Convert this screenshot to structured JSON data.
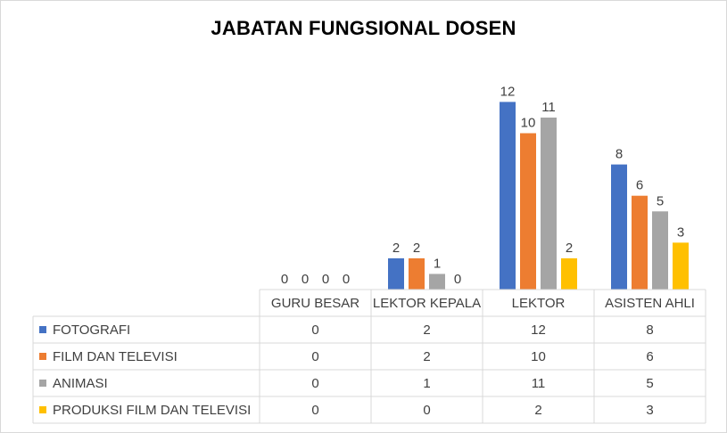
{
  "chart_data": {
    "type": "bar",
    "title": "JABATAN FUNGSIONAL DOSEN",
    "categories": [
      "GURU BESAR",
      "LEKTOR KEPALA",
      "LEKTOR",
      "ASISTEN AHLI"
    ],
    "series": [
      {
        "name": "FOTOGRAFI",
        "values": [
          0,
          2,
          12,
          8
        ],
        "color": "#4472c4"
      },
      {
        "name": "FILM DAN TELEVISI",
        "values": [
          0,
          2,
          10,
          6
        ],
        "color": "#ed7d31"
      },
      {
        "name": "ANIMASI",
        "values": [
          0,
          1,
          11,
          5
        ],
        "color": "#a5a5a5"
      },
      {
        "name": "PRODUKSI FILM DAN TELEVISI",
        "values": [
          0,
          0,
          2,
          3
        ],
        "color": "#ffc000"
      }
    ],
    "ylim": [
      0,
      12
    ],
    "grid": false,
    "legend": "data-table",
    "data_labels": true
  }
}
